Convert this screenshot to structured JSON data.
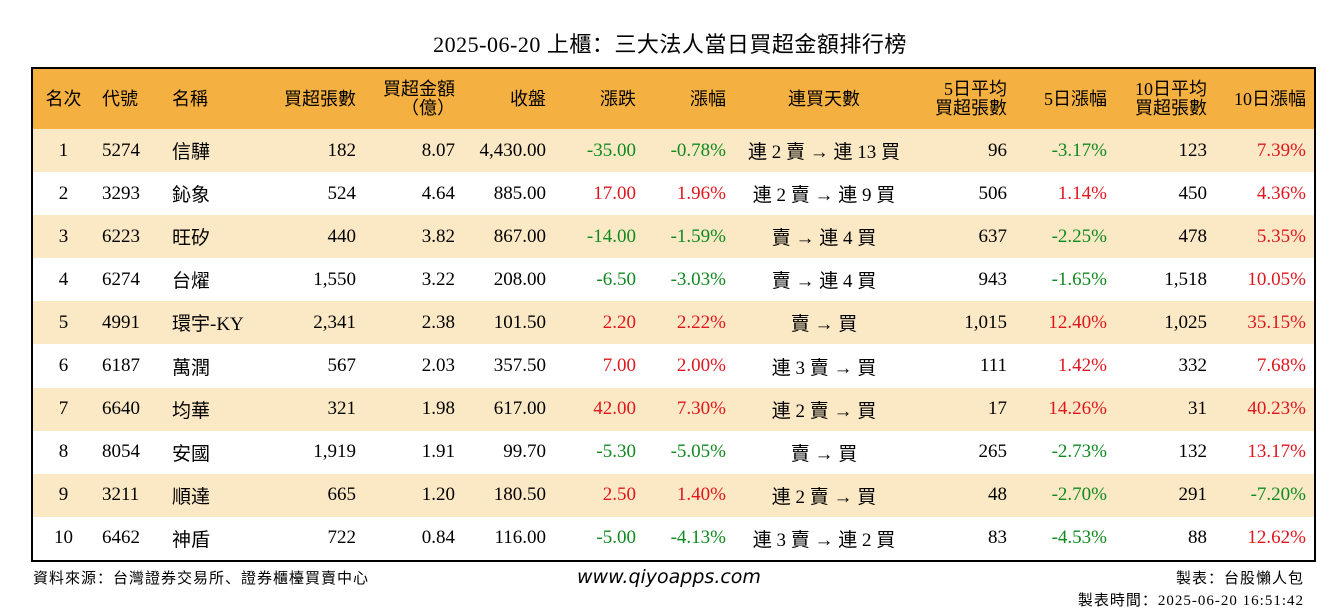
{
  "title": "2025-06-20 上櫃：三大法人當日買超金額排行榜",
  "headers": {
    "rank": "名次",
    "code": "代號",
    "name": "名稱",
    "buy_lots": "買超張數",
    "buy_amount_l1": "買超金額",
    "buy_amount_l2": "（億）",
    "close": "收盤",
    "change": "漲跌",
    "change_pct": "漲幅",
    "streak": "連買天數",
    "avg5_l1": "5日平均",
    "avg5_l2": "買超張數",
    "pct5": "5日漲幅",
    "avg10_l1": "10日平均",
    "avg10_l2": "買超張數",
    "pct10": "10日漲幅"
  },
  "colors": {
    "header_bg": "#f5b042",
    "row_alt_bg": "#fbe8c5",
    "positive": "#e0161e",
    "negative": "#0f8a1f"
  },
  "rows": [
    {
      "rank": "1",
      "code": "5274",
      "name": "信驊",
      "buy_lots": "182",
      "buy_amount": "8.07",
      "close": "4,430.00",
      "change": "-35.00",
      "change_pct": "-0.78%",
      "streak": "連 2 賣 → 連 13 買",
      "avg5": "96",
      "pct5": "-3.17%",
      "avg10": "123",
      "pct10": "7.39%"
    },
    {
      "rank": "2",
      "code": "3293",
      "name": "鈊象",
      "buy_lots": "524",
      "buy_amount": "4.64",
      "close": "885.00",
      "change": "17.00",
      "change_pct": "1.96%",
      "streak": "連 2 賣 → 連 9 買",
      "avg5": "506",
      "pct5": "1.14%",
      "avg10": "450",
      "pct10": "4.36%"
    },
    {
      "rank": "3",
      "code": "6223",
      "name": "旺矽",
      "buy_lots": "440",
      "buy_amount": "3.82",
      "close": "867.00",
      "change": "-14.00",
      "change_pct": "-1.59%",
      "streak": "賣 → 連 4 買",
      "avg5": "637",
      "pct5": "-2.25%",
      "avg10": "478",
      "pct10": "5.35%"
    },
    {
      "rank": "4",
      "code": "6274",
      "name": "台燿",
      "buy_lots": "1,550",
      "buy_amount": "3.22",
      "close": "208.00",
      "change": "-6.50",
      "change_pct": "-3.03%",
      "streak": "賣 → 連 4 買",
      "avg5": "943",
      "pct5": "-1.65%",
      "avg10": "1,518",
      "pct10": "10.05%"
    },
    {
      "rank": "5",
      "code": "4991",
      "name": "環宇-KY",
      "buy_lots": "2,341",
      "buy_amount": "2.38",
      "close": "101.50",
      "change": "2.20",
      "change_pct": "2.22%",
      "streak": "賣 → 買",
      "avg5": "1,015",
      "pct5": "12.40%",
      "avg10": "1,025",
      "pct10": "35.15%"
    },
    {
      "rank": "6",
      "code": "6187",
      "name": "萬潤",
      "buy_lots": "567",
      "buy_amount": "2.03",
      "close": "357.50",
      "change": "7.00",
      "change_pct": "2.00%",
      "streak": "連 3 賣 → 買",
      "avg5": "111",
      "pct5": "1.42%",
      "avg10": "332",
      "pct10": "7.68%"
    },
    {
      "rank": "7",
      "code": "6640",
      "name": "均華",
      "buy_lots": "321",
      "buy_amount": "1.98",
      "close": "617.00",
      "change": "42.00",
      "change_pct": "7.30%",
      "streak": "連 2 賣 → 買",
      "avg5": "17",
      "pct5": "14.26%",
      "avg10": "31",
      "pct10": "40.23%"
    },
    {
      "rank": "8",
      "code": "8054",
      "name": "安國",
      "buy_lots": "1,919",
      "buy_amount": "1.91",
      "close": "99.70",
      "change": "-5.30",
      "change_pct": "-5.05%",
      "streak": "賣 → 買",
      "avg5": "265",
      "pct5": "-2.73%",
      "avg10": "132",
      "pct10": "13.17%"
    },
    {
      "rank": "9",
      "code": "3211",
      "name": "順達",
      "buy_lots": "665",
      "buy_amount": "1.20",
      "close": "180.50",
      "change": "2.50",
      "change_pct": "1.40%",
      "streak": "連 2 賣 → 買",
      "avg5": "48",
      "pct5": "-2.70%",
      "avg10": "291",
      "pct10": "-7.20%"
    },
    {
      "rank": "10",
      "code": "6462",
      "name": "神盾",
      "buy_lots": "722",
      "buy_amount": "0.84",
      "close": "116.00",
      "change": "-5.00",
      "change_pct": "-4.13%",
      "streak": "連 3 賣 → 連 2 買",
      "avg5": "83",
      "pct5": "-4.53%",
      "avg10": "88",
      "pct10": "12.62%"
    }
  ],
  "footer": {
    "source": "資料來源：台灣證券交易所、證券櫃檯買賣中心",
    "website": "www.qiyoapps.com",
    "maker": "製表：台股懶人包",
    "made_time": "製表時間：2025-06-20 16:51:42"
  }
}
